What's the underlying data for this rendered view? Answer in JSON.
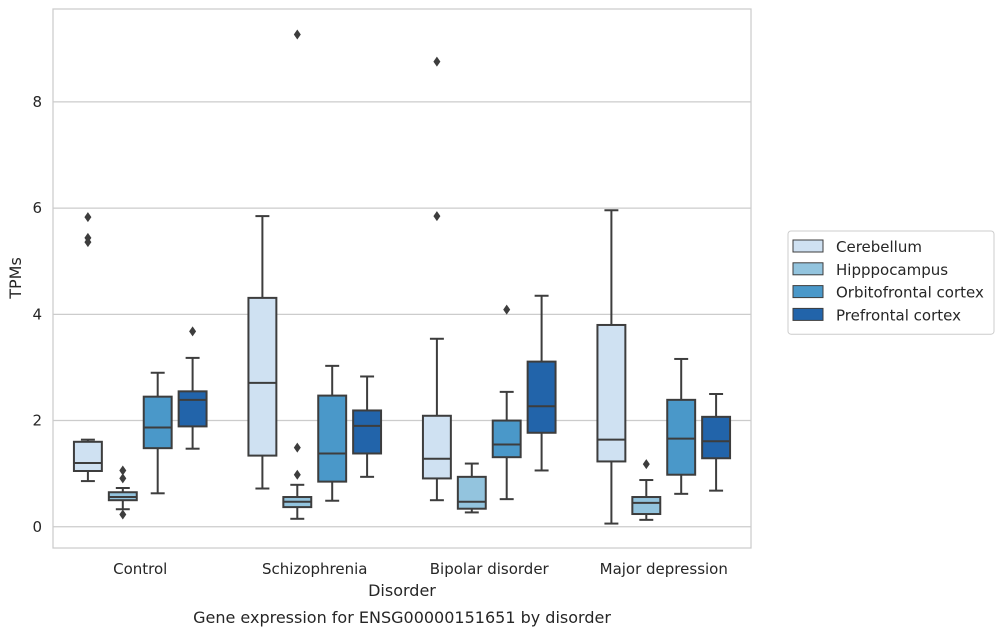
{
  "chart_data": {
    "type": "box",
    "title": "",
    "caption": "Gene expression for ENSG00000151651 by disorder",
    "xlabel": "Disorder",
    "ylabel": "TPMs",
    "ylim": [
      -0.4,
      9.75
    ],
    "yticks": [
      0,
      2,
      4,
      6,
      8
    ],
    "grid": "horizontal",
    "legend_position": "right",
    "categories": [
      "Control",
      "Schizophrenia",
      "Bipolar disorder",
      "Major depression"
    ],
    "series": [
      {
        "name": "Cerebellum",
        "color": "#cfe1f2",
        "boxes": [
          {
            "whislo": 0.86,
            "q1": 1.05,
            "med": 1.2,
            "q3": 1.6,
            "whishi": 1.64,
            "fliers": [
              5.83,
              5.44,
              5.36
            ]
          },
          {
            "whislo": 0.72,
            "q1": 1.34,
            "med": 2.71,
            "q3": 4.31,
            "whishi": 5.85,
            "fliers": []
          },
          {
            "whislo": 0.5,
            "q1": 0.91,
            "med": 1.28,
            "q3": 2.09,
            "whishi": 3.54,
            "fliers": [
              8.76,
              5.85
            ]
          },
          {
            "whislo": 0.06,
            "q1": 1.23,
            "med": 1.64,
            "q3": 3.8,
            "whishi": 5.96,
            "fliers": []
          }
        ]
      },
      {
        "name": "Hipppocampus",
        "color": "#93c4de",
        "boxes": [
          {
            "whislo": 0.33,
            "q1": 0.5,
            "med": 0.56,
            "q3": 0.65,
            "whishi": 0.73,
            "fliers": [
              1.06,
              0.91,
              0.23
            ]
          },
          {
            "whislo": 0.15,
            "q1": 0.37,
            "med": 0.47,
            "q3": 0.56,
            "whishi": 0.79,
            "fliers": [
              1.49,
              0.98,
              9.27
            ]
          },
          {
            "whislo": 0.27,
            "q1": 0.34,
            "med": 0.47,
            "q3": 0.94,
            "whishi": 1.19,
            "fliers": []
          },
          {
            "whislo": 0.13,
            "q1": 0.24,
            "med": 0.45,
            "q3": 0.56,
            "whishi": 0.88,
            "fliers": [
              1.18
            ]
          }
        ]
      },
      {
        "name": "Orbitofrontal cortex",
        "color": "#4a98c9",
        "boxes": [
          {
            "whislo": 0.63,
            "q1": 1.48,
            "med": 1.87,
            "q3": 2.45,
            "whishi": 2.9,
            "fliers": []
          },
          {
            "whislo": 0.49,
            "q1": 0.85,
            "med": 1.38,
            "q3": 2.47,
            "whishi": 3.03,
            "fliers": []
          },
          {
            "whislo": 0.52,
            "q1": 1.31,
            "med": 1.55,
            "q3": 2.0,
            "whishi": 2.54,
            "fliers": [
              4.09
            ]
          },
          {
            "whislo": 0.62,
            "q1": 0.98,
            "med": 1.66,
            "q3": 2.39,
            "whishi": 3.16,
            "fliers": []
          }
        ]
      },
      {
        "name": "Prefrontal cortex",
        "color": "#2264aa",
        "boxes": [
          {
            "whislo": 1.47,
            "q1": 1.89,
            "med": 2.39,
            "q3": 2.55,
            "whishi": 3.18,
            "fliers": [
              3.68
            ]
          },
          {
            "whislo": 0.94,
            "q1": 1.38,
            "med": 1.9,
            "q3": 2.19,
            "whishi": 2.83,
            "fliers": []
          },
          {
            "whislo": 1.06,
            "q1": 1.77,
            "med": 2.27,
            "q3": 3.11,
            "whishi": 4.35,
            "fliers": []
          },
          {
            "whislo": 0.68,
            "q1": 1.29,
            "med": 1.61,
            "q3": 2.07,
            "whishi": 2.5,
            "fliers": []
          }
        ]
      }
    ]
  }
}
